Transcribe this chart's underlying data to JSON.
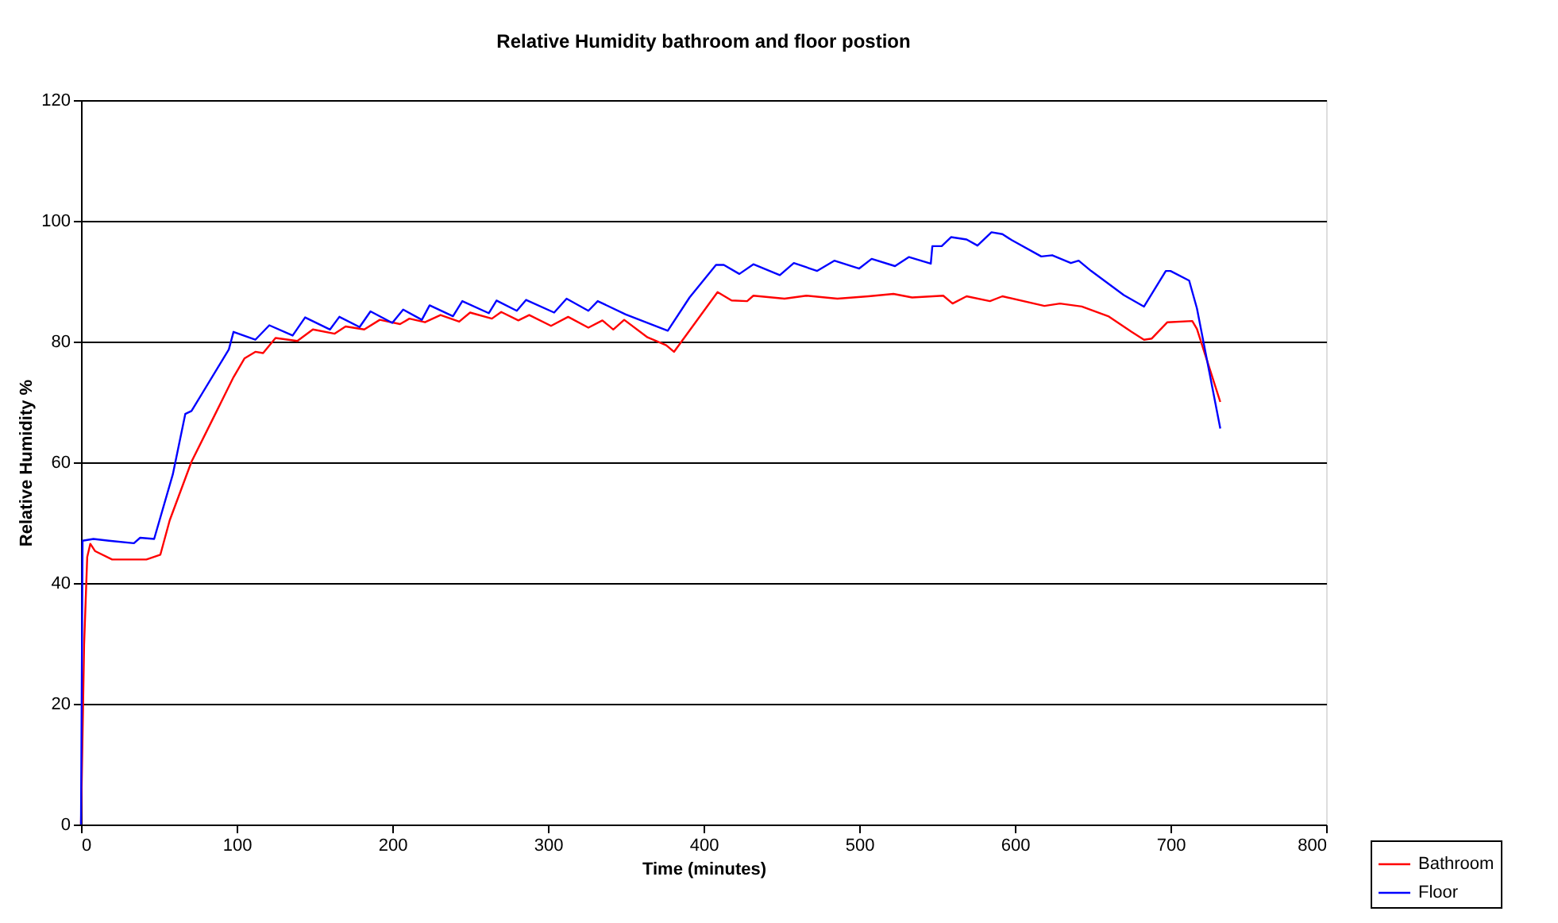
{
  "chart_data": {
    "type": "line",
    "title": "Relative Humidity bathroom and floor postion",
    "xlabel": "Time (minutes)",
    "ylabel": "Relative Humidity %",
    "xlim": [
      0,
      800
    ],
    "xticks": [
      0,
      100,
      200,
      300,
      400,
      500,
      600,
      700,
      800
    ],
    "ylim": [
      0,
      120
    ],
    "yticks": [
      0,
      20,
      40,
      60,
      80,
      100,
      120
    ],
    "grid": "y",
    "legend": "bottom right",
    "marker": "none",
    "line_style": "solid",
    "series": [
      {
        "name": "Bathroom",
        "color": "#ff0000",
        "x": [
          0,
          2,
          4,
          6,
          9,
          20,
          42,
          51,
          57,
          71,
          88,
          98,
          105,
          112,
          117,
          125,
          139,
          149,
          163,
          170,
          182,
          192,
          205,
          211,
          221,
          231,
          243,
          250,
          264,
          270,
          281,
          288,
          302,
          313,
          326,
          335,
          342,
          349,
          364,
          376,
          381,
          409,
          418,
          428,
          432,
          452,
          466,
          486,
          506,
          522,
          534,
          554,
          560,
          569,
          584,
          592,
          619,
          629,
          643,
          660,
          675,
          683,
          688,
          698,
          714,
          717,
          732
        ],
        "values": [
          0,
          29.8,
          44.3,
          46.5,
          45.3,
          43.9,
          43.9,
          44.7,
          50.4,
          60.1,
          68.9,
          74.1,
          77.2,
          78.3,
          78.1,
          80.6,
          80.1,
          82,
          81.3,
          82.5,
          82,
          83.6,
          82.9,
          83.8,
          83.2,
          84.4,
          83.3,
          84.8,
          83.8,
          84.9,
          83.5,
          84.4,
          82.6,
          84.1,
          82.3,
          83.5,
          82,
          83.6,
          80.7,
          79.4,
          78.3,
          88.2,
          86.8,
          86.7,
          87.6,
          87.1,
          87.6,
          87.1,
          87.5,
          87.9,
          87.3,
          87.6,
          86.3,
          87.5,
          86.7,
          87.5,
          85.9,
          86.3,
          85.8,
          84.2,
          81.6,
          80.3,
          80.5,
          83.2,
          83.4,
          82.1,
          70
        ]
      },
      {
        "name": "Floor",
        "color": "#0000ff",
        "x": [
          0,
          1,
          8,
          18,
          34,
          38,
          47,
          59,
          67,
          71,
          95,
          98,
          112,
          121,
          136,
          144,
          160,
          166,
          179,
          186,
          200,
          207,
          219,
          224,
          239,
          245,
          262,
          267,
          280,
          286,
          304,
          312,
          326,
          332,
          350,
          377,
          391,
          408,
          413,
          423,
          432,
          449,
          458,
          473,
          484,
          500,
          508,
          523,
          532,
          546,
          547,
          553,
          559,
          569,
          576,
          585,
          592,
          598,
          617,
          624,
          636,
          641,
          649,
          670,
          683,
          697,
          700,
          712,
          717,
          732
        ],
        "values": [
          0,
          47,
          47.3,
          47,
          46.6,
          47.5,
          47.3,
          58,
          68,
          68.5,
          78.7,
          81.6,
          80.3,
          82.7,
          81,
          84,
          82,
          84.1,
          82.4,
          85,
          83.1,
          85.3,
          83.6,
          86,
          84.2,
          86.7,
          84.7,
          86.8,
          85.1,
          86.9,
          84.8,
          87.1,
          85.1,
          86.7,
          84.5,
          81.8,
          87.3,
          92.7,
          92.7,
          91.2,
          92.8,
          91,
          93,
          91.7,
          93.4,
          92.1,
          93.7,
          92.5,
          94,
          92.9,
          95.8,
          95.8,
          97.3,
          96.9,
          95.9,
          98.1,
          97.8,
          96.8,
          94.1,
          94.3,
          93,
          93.4,
          91.7,
          87.7,
          85.8,
          91.7,
          91.7,
          90.1,
          85.5,
          65.6
        ]
      }
    ]
  }
}
